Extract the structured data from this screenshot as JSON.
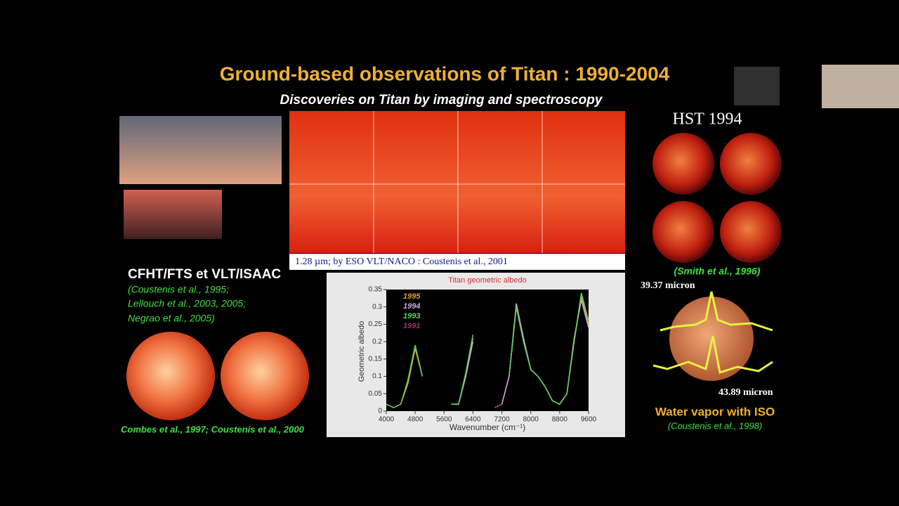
{
  "slide": {
    "title": "Ground-based observations of Titan : 1990-2004",
    "subtitle": "Discoveries on Titan by imaging and spectroscopy",
    "map_caption": "1.28 µm; by ESO VLT/NACO : Coustenis et al., 2001",
    "hst_label": "HST 1994",
    "hst_ref": "(Smith et al., 1996)",
    "left_heading": "CFHT/FTS et VLT/ISAAC",
    "left_refs": [
      "(Coustenis et al., 1995;",
      "Lellouch et al., 2003, 2005;",
      "Negrao et al., 2005)"
    ],
    "left_bottom_ref": "Combes et al., 1997; Coustenis et al., 2000",
    "iso_line1": "39.37 micron",
    "iso_line2": "43.89 micron",
    "iso_heading": "Water vapor with ISO",
    "iso_ref": "(Coustenis et al., 1998)"
  },
  "chart_data": {
    "type": "line",
    "title": "Titan geometric albedo",
    "x_label": "Wavenumber (cm⁻¹)",
    "y_label": "Geometric albedo",
    "x": [
      4000,
      4200,
      4400,
      4600,
      4800,
      5000,
      5200,
      5400,
      5600,
      5800,
      6000,
      6200,
      6400,
      6600,
      6800,
      7000,
      7200,
      7400,
      7600,
      7800,
      8000,
      8200,
      8400,
      8600,
      8800,
      9000,
      9200,
      9400,
      9600
    ],
    "series": [
      {
        "name": "1995",
        "color": "#e0a020",
        "values": [
          0.02,
          0.01,
          0.02,
          0.08,
          0.18,
          0.1,
          null,
          null,
          null,
          0.02,
          0.02,
          0.1,
          0.21,
          null,
          null,
          0.01,
          0.02,
          0.1,
          0.3,
          0.2,
          0.12,
          0.1,
          0.07,
          0.03,
          0.02,
          0.05,
          0.2,
          0.33,
          0.25
        ]
      },
      {
        "name": "1994",
        "color": "#c8a8e0",
        "values": [
          null,
          null,
          null,
          null,
          null,
          null,
          null,
          null,
          null,
          0.02,
          0.02,
          0.1,
          0.2,
          null,
          null,
          0.01,
          0.02,
          0.1,
          0.31,
          0.21,
          0.12,
          0.1,
          0.07,
          0.03,
          0.02,
          0.05,
          0.21,
          0.32,
          0.24
        ]
      },
      {
        "name": "1993",
        "color": "#60d060",
        "values": [
          0.02,
          0.01,
          0.02,
          0.09,
          0.19,
          0.1,
          null,
          null,
          null,
          0.02,
          0.02,
          0.11,
          0.22,
          null,
          null,
          null,
          null,
          0.1,
          0.3,
          0.2,
          0.12,
          0.1,
          0.07,
          0.03,
          0.02,
          0.05,
          0.2,
          0.34,
          0.26
        ]
      },
      {
        "name": "1991",
        "color": "#a03070",
        "values": [
          null,
          null,
          null,
          null,
          null,
          null,
          null,
          null,
          null,
          null,
          null,
          null,
          null,
          null,
          null,
          0.01,
          0.02,
          null,
          null,
          null,
          null,
          null,
          null,
          null,
          null,
          null,
          null,
          null,
          null
        ]
      }
    ],
    "xlim": [
      4000,
      9600
    ],
    "ylim": [
      0,
      0.35
    ],
    "xticks": [
      4000,
      4800,
      5600,
      6400,
      7200,
      8000,
      8800,
      9600
    ],
    "yticks": [
      0,
      0.05,
      0.1,
      0.15,
      0.2,
      0.25,
      0.3,
      0.35
    ]
  }
}
